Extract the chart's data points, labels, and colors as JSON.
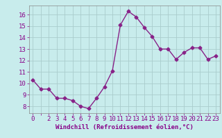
{
  "x": [
    0,
    1,
    2,
    3,
    4,
    5,
    6,
    7,
    8,
    9,
    10,
    11,
    12,
    13,
    14,
    15,
    16,
    17,
    18,
    19,
    20,
    21,
    22,
    23
  ],
  "y": [
    10.3,
    9.5,
    9.5,
    8.7,
    8.7,
    8.5,
    8.0,
    7.8,
    8.7,
    9.7,
    11.1,
    15.1,
    16.3,
    15.8,
    14.9,
    14.1,
    13.0,
    13.0,
    12.1,
    12.7,
    13.1,
    13.1,
    12.1,
    12.4
  ],
  "line_color": "#882288",
  "marker": "D",
  "marker_size": 2.5,
  "bg_color": "#c8ecec",
  "grid_color": "#aacccc",
  "xlabel": "Windchill (Refroidissement éolien,°C)",
  "xlabel_fontsize": 6.5,
  "yticks": [
    8,
    9,
    10,
    11,
    12,
    13,
    14,
    15,
    16
  ],
  "xtick_labels": [
    "0",
    "",
    "2",
    "3",
    "4",
    "5",
    "6",
    "7",
    "8",
    "9",
    "10",
    "11",
    "12",
    "13",
    "14",
    "15",
    "16",
    "17",
    "18",
    "19",
    "20",
    "21",
    "22",
    "23"
  ],
  "ylim": [
    7.4,
    16.8
  ],
  "xlim": [
    -0.5,
    23.5
  ],
  "tick_fontsize": 6.5,
  "line_width": 1.0,
  "text_color": "#880088"
}
